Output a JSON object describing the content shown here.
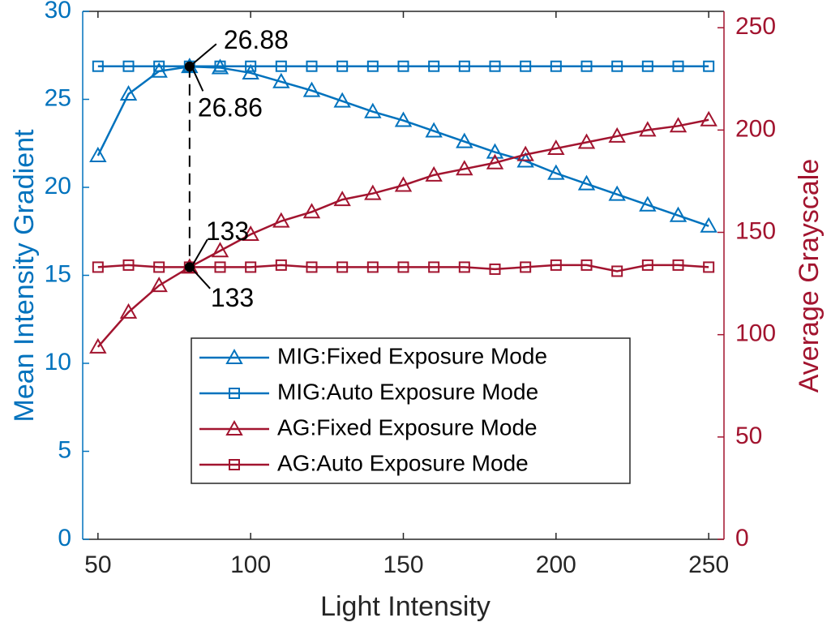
{
  "chart_data": {
    "type": "line",
    "x_label": "Light Intensity",
    "y_label": "Mean Intensity Gradient",
    "y2_label": "Average Grayscale",
    "x": [
      50,
      60,
      70,
      80,
      90,
      100,
      110,
      120,
      130,
      140,
      150,
      160,
      170,
      180,
      190,
      200,
      210,
      220,
      230,
      240,
      250
    ],
    "xlim": [
      45,
      255
    ],
    "xticks": [
      50,
      100,
      150,
      200,
      250
    ],
    "ylim": [
      0,
      30
    ],
    "yticks": [
      0,
      5,
      10,
      15,
      20,
      25,
      30
    ],
    "y2lim": [
      0,
      258
    ],
    "y2ticks": [
      0,
      50,
      100,
      150,
      200,
      250
    ],
    "y_color": "#0072bd",
    "y2_color": "#a2142f",
    "legend": "bottom-center",
    "series": [
      {
        "name": "MIG:Fixed Exposure Mode",
        "color": "#0072bd",
        "marker": "triangle",
        "axis": "y",
        "values": [
          21.8,
          25.3,
          26.6,
          26.86,
          26.8,
          26.5,
          26.0,
          25.5,
          24.9,
          24.3,
          23.8,
          23.2,
          22.6,
          22.0,
          21.5,
          20.8,
          20.2,
          19.6,
          19.0,
          18.4,
          17.8
        ]
      },
      {
        "name": "MIG:Auto Exposure Mode",
        "color": "#0072bd",
        "marker": "square",
        "axis": "y",
        "values": [
          26.88,
          26.88,
          26.88,
          26.88,
          26.88,
          26.88,
          26.88,
          26.88,
          26.88,
          26.88,
          26.88,
          26.88,
          26.88,
          26.88,
          26.88,
          26.88,
          26.88,
          26.88,
          26.88,
          26.88,
          26.88
        ]
      },
      {
        "name": "AG:Fixed Exposure Mode",
        "color": "#a2142f",
        "marker": "triangle",
        "axis": "y2",
        "values": [
          94,
          111,
          124,
          133,
          141,
          149,
          155.5,
          160,
          166,
          169,
          173,
          178,
          181,
          184,
          188,
          191,
          194,
          197,
          200,
          202,
          205
        ]
      },
      {
        "name": "AG:Auto Exposure Mode",
        "color": "#a2142f",
        "marker": "square",
        "axis": "y2",
        "values": [
          133,
          134,
          133,
          133,
          133,
          133,
          134,
          133,
          133,
          133,
          133,
          133,
          133,
          132,
          133,
          134,
          134,
          131,
          134,
          134,
          133
        ]
      }
    ],
    "annotations": [
      {
        "x": 80,
        "y": 26.88,
        "axis": "y"
      },
      {
        "x": 80,
        "y": 26.86,
        "axis": "y"
      },
      {
        "x": 80,
        "y": 133,
        "axis": "y2"
      },
      {
        "x": 80,
        "y": 133,
        "axis": "y2"
      }
    ]
  }
}
